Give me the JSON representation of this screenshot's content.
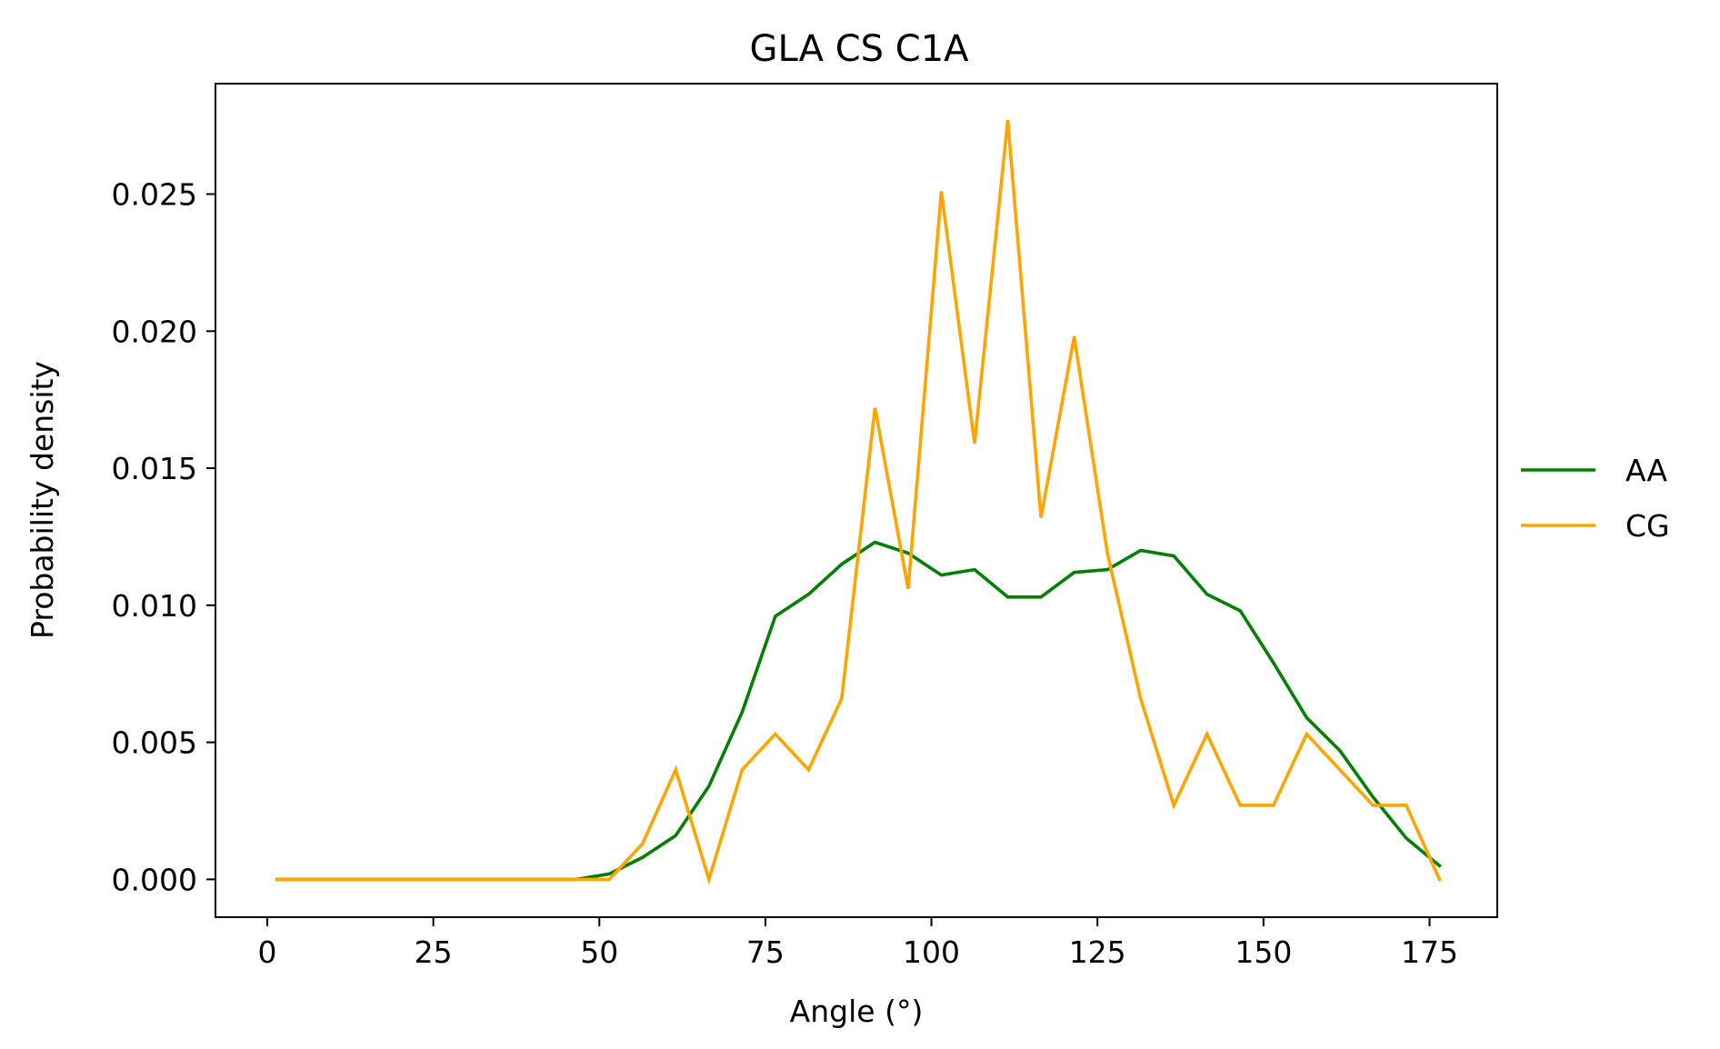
{
  "chart_data": {
    "type": "line",
    "title": "GLA CS C1A",
    "xlabel": "Angle (°)",
    "ylabel": "Probability density",
    "xlim": [
      -7.8,
      185.2
    ],
    "ylim": [
      -0.00138,
      0.02903
    ],
    "xticks": [
      0,
      25,
      50,
      75,
      100,
      125,
      150,
      175
    ],
    "xtick_labels": [
      "0",
      "25",
      "50",
      "75",
      "100",
      "125",
      "150",
      "175"
    ],
    "yticks": [
      0,
      0.005,
      0.01,
      0.015,
      0.02,
      0.025
    ],
    "ytick_labels": [
      "0.000",
      "0.005",
      "0.010",
      "0.015",
      "0.020",
      "0.025"
    ],
    "grid": false,
    "legend_position": "outside right",
    "x": [
      1.5,
      6.5,
      11.5,
      16.5,
      21.5,
      26.5,
      31.5,
      36.5,
      41.5,
      46.5,
      51.5,
      56.5,
      61.5,
      66.5,
      71.5,
      76.5,
      81.5,
      86.5,
      91.5,
      96.5,
      101.5,
      106.5,
      111.5,
      116.5,
      121.5,
      126.5,
      131.5,
      136.5,
      141.5,
      146.5,
      151.5,
      156.5,
      161.5,
      166.5,
      171.5,
      176.5
    ],
    "series": [
      {
        "name": "AA",
        "color": "#008000",
        "values": [
          0,
          0,
          0,
          0,
          0,
          0,
          0,
          0,
          0,
          0,
          0.0002,
          0.0008,
          0.0016,
          0.0034,
          0.0061,
          0.0096,
          0.0104,
          0.0115,
          0.0123,
          0.0119,
          0.0111,
          0.0113,
          0.0103,
          0.0103,
          0.0112,
          0.0113,
          0.012,
          0.0118,
          0.0104,
          0.0098,
          0.0079,
          0.0059,
          0.0047,
          0.003,
          0.0015,
          0.0005
        ]
      },
      {
        "name": "CG",
        "color": "#FFA500",
        "values": [
          0,
          0,
          0,
          0,
          0,
          0,
          0,
          0,
          0,
          0,
          0,
          0.0013,
          0.004,
          0,
          0.004,
          0.0053,
          0.004,
          0.0066,
          0.0172,
          0.0106,
          0.0251,
          0.0159,
          0.0277,
          0.0132,
          0.0198,
          0.0119,
          0.0066,
          0.0027,
          0.0053,
          0.0027,
          0.0027,
          0.0053,
          0.004,
          0.0027,
          0.0027,
          0
        ]
      }
    ]
  }
}
